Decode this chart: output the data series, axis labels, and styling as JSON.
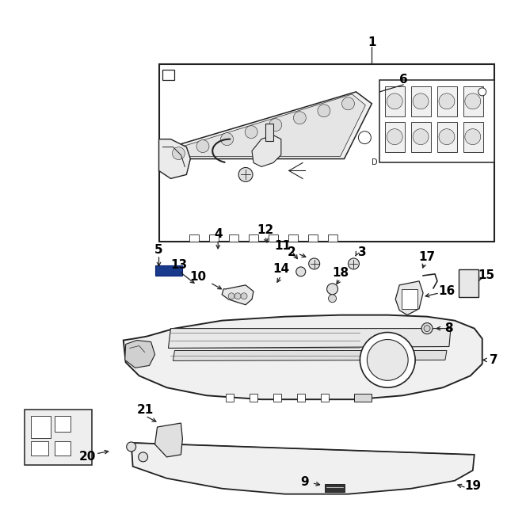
{
  "bg_color": "#ffffff",
  "lc": "#222222",
  "blue_color": "#1a3a8c",
  "fig_w": 6.4,
  "fig_h": 6.4,
  "dpi": 100
}
